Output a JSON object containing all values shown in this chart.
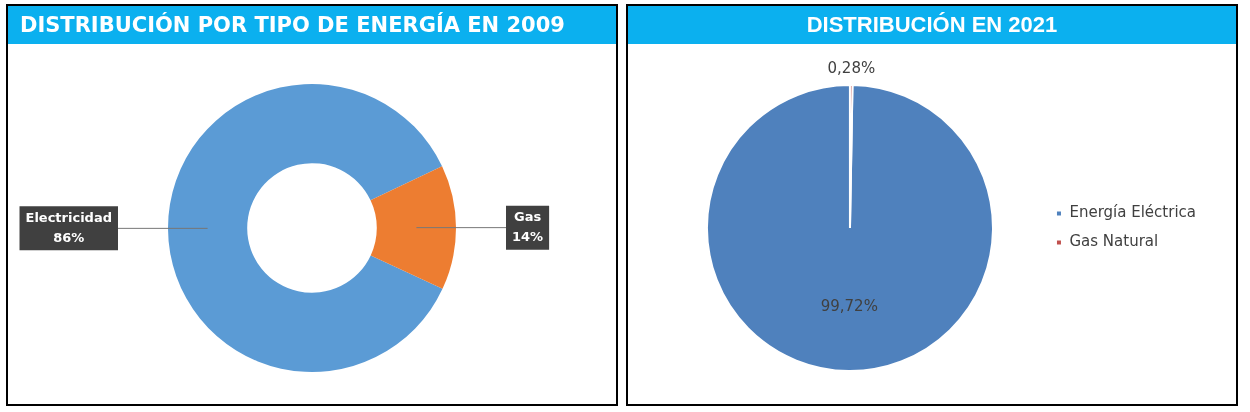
{
  "chart_data": [
    {
      "type": "donut",
      "title": "DISTRIBUCIÓN POR TIPO DE ENERGÍA EN 2009",
      "categories": [
        "Electricidad",
        "Gas"
      ],
      "values": [
        86,
        14
      ],
      "colors": [
        "#5b9bd5",
        "#ed7d31"
      ],
      "value_labels": [
        "86%",
        "14%"
      ],
      "legend": false
    },
    {
      "type": "pie",
      "title": "DISTRIBUCIÓN EN 2021",
      "categories": [
        "Energía Eléctrica",
        "Gas Natural"
      ],
      "values": [
        99.72,
        0.28
      ],
      "colors": [
        "#4f81bd",
        "#c0504d"
      ],
      "value_labels": [
        "99,72%",
        "0,28%"
      ],
      "legend": "right"
    }
  ]
}
